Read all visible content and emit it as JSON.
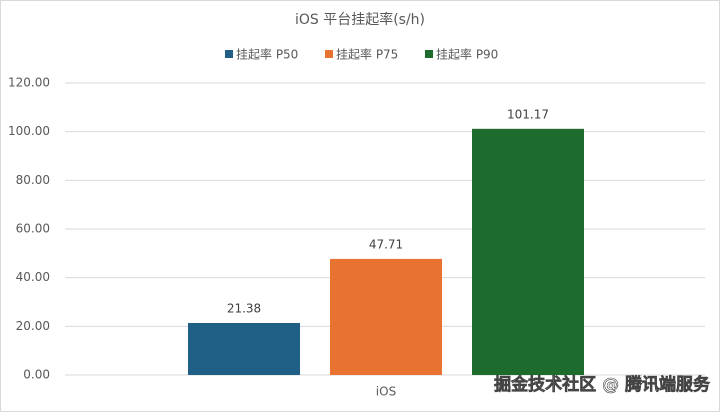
{
  "chart_data": {
    "type": "bar",
    "title": "iOS 平台挂起率(s/h)",
    "categories": [
      "iOS"
    ],
    "series": [
      {
        "name": "挂起率 P50",
        "color": "#1f5f85",
        "values": [
          21.38
        ]
      },
      {
        "name": "挂起率 P75",
        "color": "#e87330",
        "values": [
          47.71
        ]
      },
      {
        "name": "挂起率 P90",
        "color": "#1e6b2e",
        "values": [
          101.17
        ]
      }
    ],
    "ylim": [
      0,
      120
    ],
    "yticks": [
      {
        "value": 0,
        "label": "0.00"
      },
      {
        "value": 20,
        "label": "20.00"
      },
      {
        "value": 40,
        "label": "40.00"
      },
      {
        "value": 60,
        "label": "60.00"
      },
      {
        "value": 80,
        "label": "80.00"
      },
      {
        "value": 100,
        "label": "100.00"
      },
      {
        "value": 120,
        "label": "120.00"
      }
    ],
    "grid": true,
    "legend": "top",
    "watermark": "掘金技术社区 @ 腾讯端服务"
  }
}
